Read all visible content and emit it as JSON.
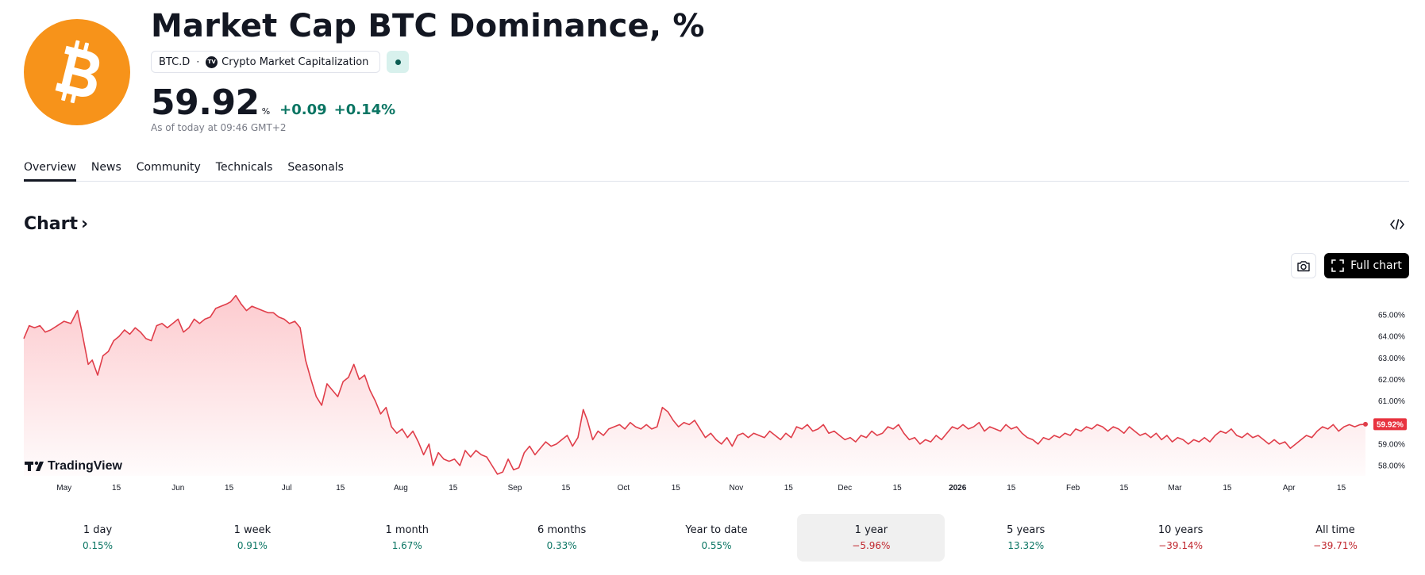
{
  "header": {
    "title": "Market Cap BTC Dominance, %",
    "symbol": "BTC.D",
    "separator": "·",
    "source_badge": "TV",
    "source": "Crypto Market Capitalization",
    "price": "59.92",
    "unit": "%",
    "change": "+0.09",
    "change_percent": "+0.14%",
    "as_of": "As of today at 09:46 GMT+2",
    "brand_color": "#f7931a",
    "positive_color": "#0a7563",
    "negative_color": "#c0262d"
  },
  "tabs": [
    {
      "label": "Overview",
      "active": true
    },
    {
      "label": "News"
    },
    {
      "label": "Community"
    },
    {
      "label": "Technicals"
    },
    {
      "label": "Seasonals"
    }
  ],
  "chart_section": {
    "heading": "Chart",
    "chevron": "›",
    "embed_icon": "code-icon",
    "snapshot_icon": "camera-icon",
    "full_chart_label": "Full chart",
    "watermark": "TradingView"
  },
  "periods": [
    {
      "label": "1 day",
      "value": "0.15%",
      "sign": "pos"
    },
    {
      "label": "1 week",
      "value": "0.91%",
      "sign": "pos"
    },
    {
      "label": "1 month",
      "value": "1.67%",
      "sign": "pos"
    },
    {
      "label": "6 months",
      "value": "0.33%",
      "sign": "pos"
    },
    {
      "label": "Year to date",
      "value": "0.55%",
      "sign": "pos"
    },
    {
      "label": "1 year",
      "value": "−5.96%",
      "sign": "neg",
      "active": true
    },
    {
      "label": "5 years",
      "value": "13.32%",
      "sign": "pos"
    },
    {
      "label": "10 years",
      "value": "−39.14%",
      "sign": "neg"
    },
    {
      "label": "All time",
      "value": "−39.71%",
      "sign": "neg"
    }
  ],
  "chart_data": {
    "type": "area",
    "line_color": "#e03e4a",
    "fill_color": "#f7525f",
    "ylim": [
      57.5,
      65.5
    ],
    "y_ticks": [
      "65.00%",
      "64.00%",
      "63.00%",
      "62.00%",
      "61.00%",
      "60.00%",
      "59.00%",
      "58.00%"
    ],
    "y_tick_values": [
      65,
      64,
      63,
      62,
      61,
      60,
      59,
      58
    ],
    "x_ticks": [
      {
        "label": "May",
        "t": 0.03
      },
      {
        "label": "15",
        "t": 0.069
      },
      {
        "label": "Jun",
        "t": 0.115
      },
      {
        "label": "15",
        "t": 0.153
      },
      {
        "label": "Jul",
        "t": 0.196
      },
      {
        "label": "15",
        "t": 0.236
      },
      {
        "label": "Aug",
        "t": 0.281
      },
      {
        "label": "15",
        "t": 0.32
      },
      {
        "label": "Sep",
        "t": 0.366
      },
      {
        "label": "15",
        "t": 0.404
      },
      {
        "label": "Oct",
        "t": 0.447
      },
      {
        "label": "15",
        "t": 0.486
      },
      {
        "label": "Nov",
        "t": 0.531
      },
      {
        "label": "15",
        "t": 0.57
      },
      {
        "label": "Dec",
        "t": 0.612
      },
      {
        "label": "15",
        "t": 0.651
      },
      {
        "label": "2026",
        "t": 0.696,
        "bold": true
      },
      {
        "label": "15",
        "t": 0.736
      },
      {
        "label": "Feb",
        "t": 0.782
      },
      {
        "label": "15",
        "t": 0.82
      },
      {
        "label": "Mar",
        "t": 0.858
      },
      {
        "label": "15",
        "t": 0.897
      },
      {
        "label": "Apr",
        "t": 0.943
      },
      {
        "label": "15",
        "t": 0.982
      }
    ],
    "last_label": "59.92%",
    "points": [
      [
        0.0,
        63.9
      ],
      [
        0.004,
        64.5
      ],
      [
        0.008,
        64.4
      ],
      [
        0.012,
        64.5
      ],
      [
        0.016,
        64.2
      ],
      [
        0.02,
        64.3
      ],
      [
        0.025,
        64.5
      ],
      [
        0.03,
        64.7
      ],
      [
        0.035,
        64.6
      ],
      [
        0.04,
        65.2
      ],
      [
        0.043,
        64.3
      ],
      [
        0.048,
        62.7
      ],
      [
        0.051,
        62.9
      ],
      [
        0.055,
        62.2
      ],
      [
        0.059,
        63.1
      ],
      [
        0.063,
        63.3
      ],
      [
        0.067,
        63.8
      ],
      [
        0.071,
        64.0
      ],
      [
        0.075,
        64.3
      ],
      [
        0.079,
        64.1
      ],
      [
        0.083,
        64.4
      ],
      [
        0.087,
        64.2
      ],
      [
        0.091,
        63.9
      ],
      [
        0.095,
        63.8
      ],
      [
        0.099,
        64.5
      ],
      [
        0.103,
        64.6
      ],
      [
        0.107,
        64.4
      ],
      [
        0.111,
        64.6
      ],
      [
        0.115,
        64.8
      ],
      [
        0.119,
        64.2
      ],
      [
        0.123,
        64.4
      ],
      [
        0.127,
        64.8
      ],
      [
        0.131,
        64.6
      ],
      [
        0.135,
        64.8
      ],
      [
        0.139,
        64.9
      ],
      [
        0.143,
        65.3
      ],
      [
        0.147,
        65.4
      ],
      [
        0.151,
        65.5
      ],
      [
        0.154,
        65.6
      ],
      [
        0.158,
        65.9
      ],
      [
        0.162,
        65.5
      ],
      [
        0.166,
        65.2
      ],
      [
        0.17,
        65.4
      ],
      [
        0.174,
        65.3
      ],
      [
        0.178,
        65.2
      ],
      [
        0.182,
        65.1
      ],
      [
        0.186,
        65.1
      ],
      [
        0.19,
        64.9
      ],
      [
        0.194,
        64.8
      ],
      [
        0.198,
        64.6
      ],
      [
        0.202,
        64.7
      ],
      [
        0.206,
        64.4
      ],
      [
        0.21,
        62.9
      ],
      [
        0.214,
        62.0
      ],
      [
        0.218,
        61.2
      ],
      [
        0.222,
        60.8
      ],
      [
        0.226,
        61.8
      ],
      [
        0.23,
        61.5
      ],
      [
        0.234,
        61.2
      ],
      [
        0.238,
        61.9
      ],
      [
        0.242,
        62.1
      ],
      [
        0.246,
        62.7
      ],
      [
        0.25,
        62.0
      ],
      [
        0.254,
        62.2
      ],
      [
        0.258,
        61.5
      ],
      [
        0.262,
        61.0
      ],
      [
        0.266,
        60.4
      ],
      [
        0.27,
        60.7
      ],
      [
        0.274,
        59.8
      ],
      [
        0.278,
        59.5
      ],
      [
        0.282,
        59.7
      ],
      [
        0.286,
        59.3
      ],
      [
        0.29,
        59.6
      ],
      [
        0.294,
        59.1
      ],
      [
        0.298,
        58.5
      ],
      [
        0.302,
        59.0
      ],
      [
        0.305,
        58.0
      ],
      [
        0.309,
        58.6
      ],
      [
        0.313,
        58.3
      ],
      [
        0.317,
        58.2
      ],
      [
        0.321,
        58.3
      ],
      [
        0.325,
        58.0
      ],
      [
        0.329,
        58.7
      ],
      [
        0.333,
        58.4
      ],
      [
        0.337,
        58.7
      ],
      [
        0.341,
        58.5
      ],
      [
        0.345,
        58.4
      ],
      [
        0.349,
        58.0
      ],
      [
        0.353,
        57.6
      ],
      [
        0.357,
        57.7
      ],
      [
        0.361,
        58.3
      ],
      [
        0.365,
        57.8
      ],
      [
        0.369,
        57.9
      ],
      [
        0.373,
        58.6
      ],
      [
        0.377,
        58.9
      ],
      [
        0.381,
        58.5
      ],
      [
        0.385,
        58.8
      ],
      [
        0.389,
        59.1
      ],
      [
        0.393,
        58.9
      ],
      [
        0.397,
        59.0
      ],
      [
        0.401,
        59.2
      ],
      [
        0.405,
        59.4
      ],
      [
        0.409,
        58.9
      ],
      [
        0.413,
        59.3
      ],
      [
        0.417,
        60.6
      ],
      [
        0.42,
        60.1
      ],
      [
        0.424,
        59.2
      ],
      [
        0.428,
        59.6
      ],
      [
        0.432,
        59.4
      ],
      [
        0.436,
        59.7
      ],
      [
        0.44,
        59.8
      ],
      [
        0.444,
        59.9
      ],
      [
        0.448,
        59.7
      ],
      [
        0.452,
        60.0
      ],
      [
        0.456,
        59.8
      ],
      [
        0.46,
        59.7
      ],
      [
        0.464,
        59.9
      ],
      [
        0.468,
        59.7
      ],
      [
        0.472,
        59.8
      ],
      [
        0.476,
        60.7
      ],
      [
        0.48,
        60.5
      ],
      [
        0.484,
        60.1
      ],
      [
        0.488,
        59.8
      ],
      [
        0.492,
        60.0
      ],
      [
        0.496,
        59.9
      ],
      [
        0.5,
        60.1
      ],
      [
        0.504,
        59.7
      ],
      [
        0.508,
        59.3
      ],
      [
        0.512,
        59.5
      ],
      [
        0.516,
        59.2
      ],
      [
        0.52,
        59.0
      ],
      [
        0.524,
        59.3
      ],
      [
        0.528,
        58.9
      ],
      [
        0.532,
        59.4
      ],
      [
        0.536,
        59.5
      ],
      [
        0.54,
        59.3
      ],
      [
        0.544,
        59.5
      ],
      [
        0.548,
        59.4
      ],
      [
        0.552,
        59.3
      ],
      [
        0.556,
        59.6
      ],
      [
        0.56,
        59.4
      ],
      [
        0.564,
        59.2
      ],
      [
        0.568,
        59.5
      ],
      [
        0.572,
        59.3
      ],
      [
        0.576,
        59.8
      ],
      [
        0.58,
        59.7
      ],
      [
        0.584,
        59.9
      ],
      [
        0.588,
        59.6
      ],
      [
        0.592,
        59.7
      ],
      [
        0.596,
        59.9
      ],
      [
        0.6,
        59.5
      ],
      [
        0.604,
        59.6
      ],
      [
        0.608,
        59.4
      ],
      [
        0.612,
        59.2
      ],
      [
        0.616,
        59.3
      ],
      [
        0.62,
        59.1
      ],
      [
        0.624,
        59.4
      ],
      [
        0.628,
        59.3
      ],
      [
        0.632,
        59.6
      ],
      [
        0.636,
        59.4
      ],
      [
        0.64,
        59.5
      ],
      [
        0.644,
        59.8
      ],
      [
        0.648,
        59.7
      ],
      [
        0.652,
        59.9
      ],
      [
        0.656,
        59.5
      ],
      [
        0.66,
        59.2
      ],
      [
        0.664,
        59.3
      ],
      [
        0.668,
        59.0
      ],
      [
        0.672,
        59.2
      ],
      [
        0.676,
        59.1
      ],
      [
        0.68,
        59.4
      ],
      [
        0.684,
        59.2
      ],
      [
        0.688,
        59.5
      ],
      [
        0.692,
        59.8
      ],
      [
        0.696,
        59.7
      ],
      [
        0.7,
        59.9
      ],
      [
        0.704,
        59.7
      ],
      [
        0.708,
        59.8
      ],
      [
        0.712,
        60.0
      ],
      [
        0.716,
        59.6
      ],
      [
        0.72,
        59.8
      ],
      [
        0.724,
        59.7
      ],
      [
        0.728,
        59.6
      ],
      [
        0.732,
        59.9
      ],
      [
        0.736,
        59.7
      ],
      [
        0.74,
        59.8
      ],
      [
        0.744,
        59.5
      ],
      [
        0.748,
        59.3
      ],
      [
        0.752,
        59.2
      ],
      [
        0.756,
        59.0
      ],
      [
        0.76,
        59.3
      ],
      [
        0.764,
        59.2
      ],
      [
        0.768,
        59.4
      ],
      [
        0.772,
        59.3
      ],
      [
        0.776,
        59.5
      ],
      [
        0.78,
        59.4
      ],
      [
        0.784,
        59.7
      ],
      [
        0.788,
        59.6
      ],
      [
        0.792,
        59.8
      ],
      [
        0.796,
        59.7
      ],
      [
        0.8,
        59.9
      ],
      [
        0.804,
        59.8
      ],
      [
        0.808,
        59.6
      ],
      [
        0.812,
        59.8
      ],
      [
        0.816,
        59.7
      ],
      [
        0.82,
        59.5
      ],
      [
        0.824,
        59.8
      ],
      [
        0.828,
        59.6
      ],
      [
        0.832,
        59.4
      ],
      [
        0.836,
        59.5
      ],
      [
        0.84,
        59.3
      ],
      [
        0.844,
        59.5
      ],
      [
        0.848,
        59.2
      ],
      [
        0.852,
        59.4
      ],
      [
        0.856,
        59.1
      ],
      [
        0.86,
        59.3
      ],
      [
        0.864,
        59.2
      ],
      [
        0.868,
        59.0
      ],
      [
        0.872,
        59.2
      ],
      [
        0.876,
        59.1
      ],
      [
        0.88,
        59.3
      ],
      [
        0.884,
        59.1
      ],
      [
        0.888,
        59.4
      ],
      [
        0.892,
        59.6
      ],
      [
        0.896,
        59.5
      ],
      [
        0.9,
        59.7
      ],
      [
        0.904,
        59.4
      ],
      [
        0.908,
        59.3
      ],
      [
        0.912,
        59.5
      ],
      [
        0.916,
        59.3
      ],
      [
        0.92,
        59.4
      ],
      [
        0.924,
        59.2
      ],
      [
        0.928,
        59.0
      ],
      [
        0.932,
        59.2
      ],
      [
        0.936,
        59.0
      ],
      [
        0.94,
        59.1
      ],
      [
        0.944,
        58.8
      ],
      [
        0.948,
        59.0
      ],
      [
        0.952,
        59.2
      ],
      [
        0.956,
        59.4
      ],
      [
        0.96,
        59.3
      ],
      [
        0.964,
        59.6
      ],
      [
        0.968,
        59.8
      ],
      [
        0.972,
        59.7
      ],
      [
        0.976,
        59.9
      ],
      [
        0.98,
        59.6
      ],
      [
        0.984,
        59.8
      ],
      [
        0.988,
        59.9
      ],
      [
        0.992,
        59.8
      ],
      [
        0.996,
        59.9
      ],
      [
        1.0,
        59.92
      ]
    ]
  }
}
